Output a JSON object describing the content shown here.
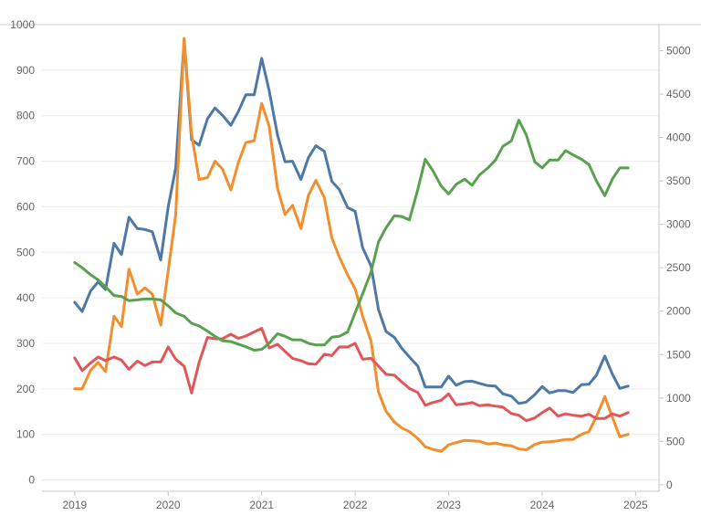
{
  "chart_data": {
    "type": "line",
    "title": "",
    "xlabel": "",
    "ylabel": "",
    "grid": true,
    "x_range": [
      2018.65,
      2025.25
    ],
    "x_ticks": [
      {
        "value": 2019,
        "label": "2019"
      },
      {
        "value": 2020,
        "label": "2020"
      },
      {
        "value": 2021,
        "label": "2021"
      },
      {
        "value": 2022,
        "label": "2022"
      },
      {
        "value": 2023,
        "label": "2023"
      },
      {
        "value": 2024,
        "label": "2024"
      },
      {
        "value": 2025,
        "label": "2025"
      }
    ],
    "y_left": {
      "range": [
        -25,
        1000
      ],
      "ticks": [
        {
          "value": 0,
          "label": "0"
        },
        {
          "value": 100,
          "label": "100"
        },
        {
          "value": 200,
          "label": "200"
        },
        {
          "value": 300,
          "label": "300"
        },
        {
          "value": 400,
          "label": "400"
        },
        {
          "value": 500,
          "label": "500"
        },
        {
          "value": 600,
          "label": "600"
        },
        {
          "value": 700,
          "label": "700"
        },
        {
          "value": 800,
          "label": "800"
        },
        {
          "value": 900,
          "label": "900"
        },
        {
          "value": 1000,
          "label": "1000"
        }
      ]
    },
    "y_right": {
      "range": [
        -75,
        5300
      ],
      "ticks": [
        {
          "value": 0,
          "label": "0"
        },
        {
          "value": 500,
          "label": "500"
        },
        {
          "value": 1000,
          "label": "1000"
        },
        {
          "value": 1500,
          "label": "1500"
        },
        {
          "value": 2000,
          "label": "2000"
        },
        {
          "value": 2500,
          "label": "2500"
        },
        {
          "value": 3000,
          "label": "3000"
        },
        {
          "value": 3500,
          "label": "3500"
        },
        {
          "value": 4000,
          "label": "4000"
        },
        {
          "value": 4500,
          "label": "4500"
        },
        {
          "value": 5000,
          "label": "5000"
        }
      ]
    },
    "x": [
      2019.0,
      2019.08,
      2019.17,
      2019.25,
      2019.33,
      2019.42,
      2019.5,
      2019.58,
      2019.67,
      2019.75,
      2019.83,
      2019.92,
      2020.0,
      2020.08,
      2020.17,
      2020.25,
      2020.33,
      2020.42,
      2020.5,
      2020.58,
      2020.67,
      2020.75,
      2020.83,
      2020.92,
      2021.0,
      2021.08,
      2021.17,
      2021.25,
      2021.33,
      2021.42,
      2021.5,
      2021.58,
      2021.67,
      2021.75,
      2021.83,
      2021.92,
      2022.0,
      2022.08,
      2022.17,
      2022.25,
      2022.33,
      2022.42,
      2022.5,
      2022.58,
      2022.67,
      2022.75,
      2022.83,
      2022.92,
      2023.0,
      2023.08,
      2023.17,
      2023.25,
      2023.33,
      2023.42,
      2023.5,
      2023.58,
      2023.67,
      2023.75,
      2023.83,
      2023.92,
      2024.0,
      2024.08,
      2024.17,
      2024.25,
      2024.33,
      2024.42,
      2024.5,
      2024.58,
      2024.67,
      2024.75,
      2024.83,
      2024.92
    ],
    "series": [
      {
        "axis": "left",
        "color": "#4e79a7",
        "values": [
          390,
          370,
          415,
          435,
          418,
          520,
          495,
          577,
          552,
          550,
          545,
          483,
          600,
          685,
          965,
          747,
          735,
          793,
          817,
          801,
          779,
          809,
          846,
          846,
          926,
          855,
          757,
          699,
          700,
          660,
          708,
          734,
          722,
          656,
          638,
          598,
          590,
          510,
          470,
          374,
          326,
          313,
          289,
          270,
          250,
          204,
          204,
          204,
          228,
          208,
          216,
          217,
          212,
          207,
          206,
          189,
          184,
          168,
          171,
          187,
          205,
          191,
          196,
          196,
          192,
          209,
          210,
          230,
          272,
          233,
          201,
          206
        ]
      },
      {
        "axis": "left",
        "color": "#f28e2b",
        "values": [
          200,
          200,
          241,
          258,
          238,
          360,
          337,
          463,
          408,
          422,
          408,
          340,
          460,
          582,
          970,
          760,
          660,
          664,
          700,
          683,
          637,
          697,
          741,
          745,
          827,
          777,
          640,
          583,
          603,
          552,
          625,
          658,
          620,
          532,
          490,
          450,
          420,
          360,
          305,
          193,
          151,
          127,
          114,
          106,
          91,
          73,
          67,
          63,
          77,
          82,
          87,
          86,
          85,
          79,
          81,
          77,
          75,
          68,
          66,
          78,
          83,
          84,
          86,
          89,
          89,
          100,
          106,
          139,
          183,
          138,
          95,
          100
        ]
      },
      {
        "axis": "left",
        "color": "#e15759",
        "values": [
          268,
          240,
          257,
          270,
          262,
          270,
          263,
          243,
          261,
          251,
          259,
          259,
          292,
          265,
          250,
          191,
          258,
          313,
          310,
          310,
          320,
          311,
          316,
          325,
          333,
          290,
          298,
          282,
          267,
          262,
          255,
          254,
          276,
          273,
          292,
          292,
          300,
          265,
          267,
          250,
          232,
          230,
          215,
          201,
          192,
          164,
          170,
          175,
          189,
          165,
          167,
          170,
          163,
          165,
          162,
          160,
          146,
          142,
          130,
          136,
          148,
          158,
          140,
          145,
          142,
          140,
          144,
          135,
          135,
          145,
          140,
          148
        ]
      },
      {
        "axis": "right",
        "color": "#59a14f",
        "values": [
          2560,
          2500,
          2420,
          2360,
          2280,
          2180,
          2170,
          2120,
          2130,
          2140,
          2140,
          2130,
          2060,
          1980,
          1940,
          1860,
          1830,
          1770,
          1710,
          1660,
          1650,
          1620,
          1590,
          1550,
          1560,
          1630,
          1740,
          1710,
          1670,
          1670,
          1630,
          1610,
          1610,
          1700,
          1710,
          1760,
          1980,
          2200,
          2450,
          2800,
          2960,
          3100,
          3090,
          3050,
          3400,
          3750,
          3620,
          3440,
          3350,
          3460,
          3520,
          3450,
          3570,
          3650,
          3740,
          3900,
          3960,
          4200,
          4030,
          3720,
          3650,
          3740,
          3740,
          3850,
          3800,
          3750,
          3690,
          3500,
          3330,
          3520,
          3650,
          3650
        ]
      }
    ]
  }
}
